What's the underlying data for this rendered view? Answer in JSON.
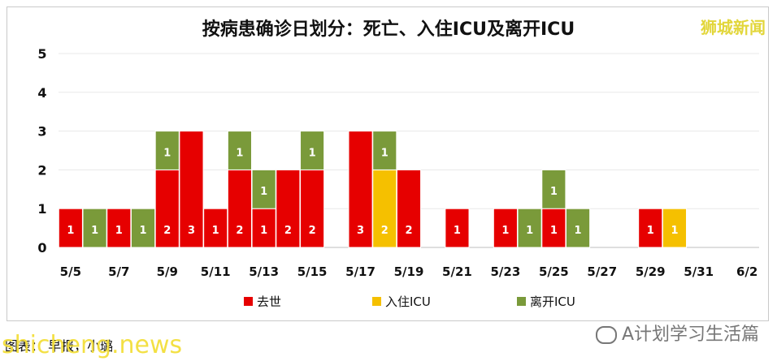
{
  "header": {
    "title": "按病患确诊日划分：死亡、入住ICU及离开ICU",
    "brand": "狮城新闻"
  },
  "footer": {
    "caption": "图表：    早报，小璐",
    "watermark_left": "shicheng.news",
    "watermark_right": "A计划学习生活篇"
  },
  "chart_data": {
    "type": "bar",
    "stacked": true,
    "title": "按病患确诊日划分：死亡、入住ICU及离开ICU",
    "xlabel": "",
    "ylabel": "",
    "ylim": [
      0,
      5
    ],
    "yticks": [
      "0",
      "1",
      "2",
      "3",
      "4",
      "5"
    ],
    "categories": [
      "5/5",
      "5/6",
      "5/7",
      "5/8",
      "5/9",
      "5/10",
      "5/11",
      "5/12",
      "5/13",
      "5/14",
      "5/15",
      "5/16",
      "5/17",
      "5/18",
      "5/19",
      "5/20",
      "5/21",
      "5/22",
      "5/23",
      "5/24",
      "5/25",
      "5/26",
      "5/27",
      "5/28",
      "5/29",
      "5/30",
      "5/31",
      "6/1",
      "6/2"
    ],
    "tick_labels": [
      "5/5",
      "5/7",
      "5/9",
      "5/11",
      "5/13",
      "5/15",
      "5/17",
      "5/19",
      "5/21",
      "5/23",
      "5/25",
      "5/27",
      "5/29",
      "5/31",
      "6/2"
    ],
    "series": [
      {
        "name": "去世",
        "color": "#e60000",
        "values": [
          1,
          0,
          1,
          0,
          2,
          3,
          1,
          2,
          1,
          2,
          2,
          0,
          3,
          0,
          2,
          0,
          1,
          0,
          1,
          0,
          1,
          0,
          0,
          0,
          1,
          0,
          0,
          0,
          0
        ]
      },
      {
        "name": "入住ICU",
        "color": "#f5c000",
        "values": [
          0,
          0,
          0,
          0,
          0,
          0,
          0,
          0,
          0,
          0,
          0,
          0,
          0,
          2,
          0,
          0,
          0,
          0,
          0,
          0,
          0,
          0,
          0,
          0,
          0,
          1,
          0,
          0,
          0
        ]
      },
      {
        "name": "离开ICU",
        "color": "#7a9a3a",
        "values": [
          0,
          1,
          0,
          1,
          1,
          0,
          0,
          1,
          1,
          0,
          1,
          0,
          0,
          1,
          0,
          0,
          0,
          0,
          0,
          1,
          1,
          1,
          0,
          0,
          0,
          0,
          0,
          0,
          0
        ]
      }
    ],
    "legend": {
      "position": "bottom",
      "items": [
        "去世",
        "入住ICU",
        "离开ICU"
      ]
    },
    "grid": true
  }
}
